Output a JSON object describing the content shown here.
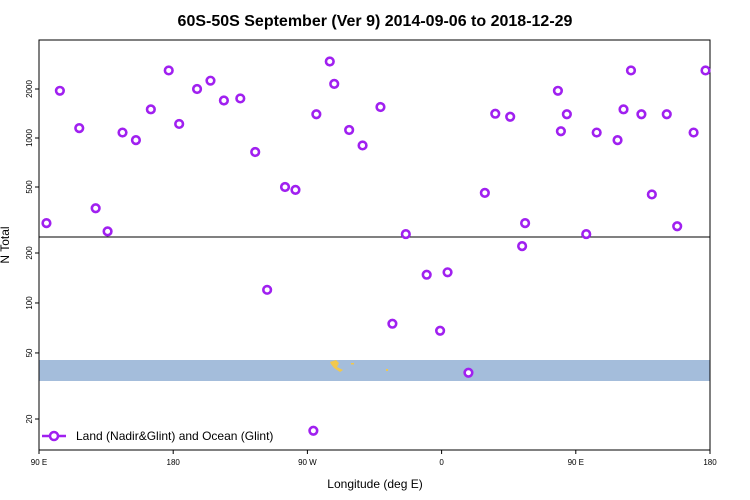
{
  "chart_data": {
    "type": "scatter",
    "title": "60S-50S September (Ver 9)   2014-09-06 to 2018-12-29",
    "xlabel": "Longitude (deg E)",
    "ylabel": "N Total",
    "x_ticks": [
      {
        "value": 90,
        "label": "90 E"
      },
      {
        "value": 180,
        "label": "180"
      },
      {
        "value": 270,
        "label": "90 W"
      },
      {
        "value": 360,
        "label": "0"
      },
      {
        "value": 450,
        "label": "90 E"
      },
      {
        "value": 540,
        "label": "180"
      }
    ],
    "xlim": [
      90,
      540
    ],
    "y_ticks_upper": [
      500,
      1000,
      2000
    ],
    "y_ticks_lower": [
      20,
      50,
      100,
      200
    ],
    "series": [
      {
        "name": "Land (Nadir&Glint) and Ocean (Glint)",
        "color": "#a020f0",
        "x": [
          95,
          104,
          117,
          128,
          136,
          146,
          155,
          165,
          177,
          184,
          196,
          205,
          214,
          225,
          235,
          243,
          255,
          262,
          274,
          276,
          285,
          288,
          298,
          307,
          319,
          327,
          336,
          350,
          359,
          364,
          378,
          389,
          396,
          406,
          414,
          416,
          438,
          440,
          444,
          457,
          464,
          478,
          482,
          487,
          494,
          501,
          511,
          518,
          529,
          537
        ],
        "y": [
          300,
          1950,
          1150,
          370,
          270,
          1080,
          970,
          1500,
          2600,
          1220,
          2000,
          2250,
          1700,
          1750,
          820,
          120,
          500,
          480,
          17,
          1400,
          2950,
          2150,
          1120,
          900,
          1550,
          75,
          260,
          148,
          68,
          153,
          38,
          460,
          1410,
          1350,
          220,
          300,
          1950,
          1100,
          1400,
          260,
          1080,
          970,
          1500,
          2600,
          1400,
          450,
          1400,
          290,
          1080,
          2600
        ]
      }
    ],
    "legend_position": "bottom-left",
    "grid": false,
    "scale": "log",
    "background_band": {
      "color": "#a4bddb"
    },
    "land_color": "#f2c84b"
  }
}
